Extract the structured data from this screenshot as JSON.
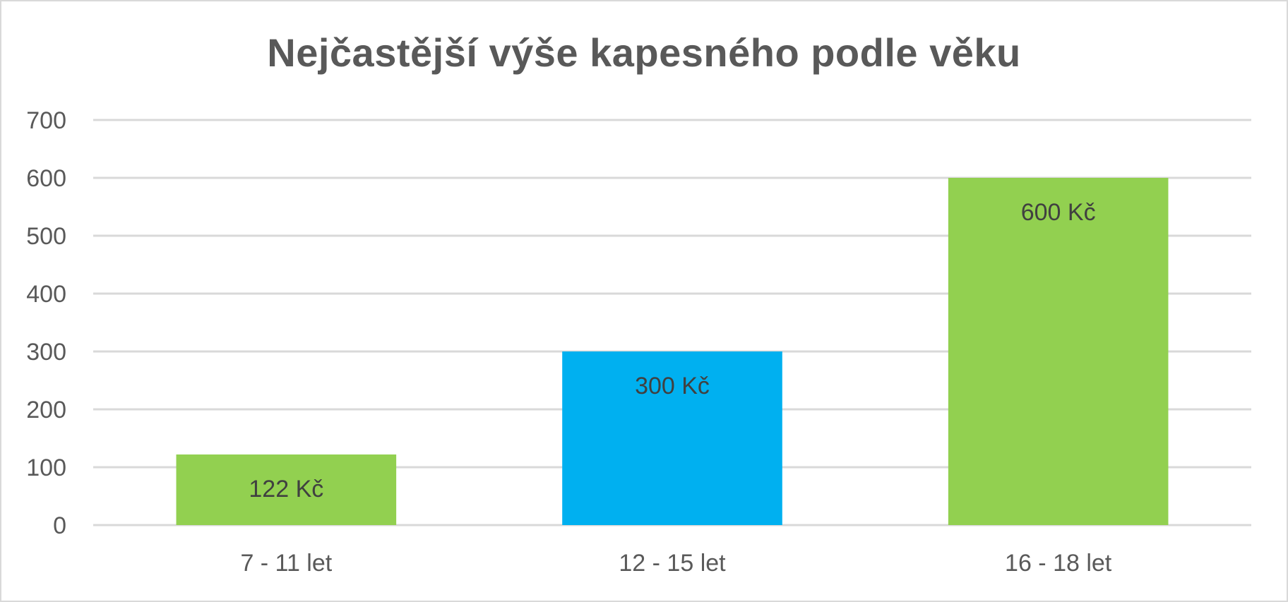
{
  "chart_data": {
    "type": "bar",
    "title": "Nejčastější výše kapesného podle věku",
    "xlabel": "",
    "ylabel": "",
    "categories": [
      "7 - 11 let",
      "12 - 15 let",
      "16 - 18 let"
    ],
    "values": [
      122,
      300,
      600
    ],
    "data_labels": [
      "122 Kč",
      "300 Kč",
      "600 Kč"
    ],
    "bar_colors": [
      "#92d050",
      "#00b0f0",
      "#92d050"
    ],
    "ylim": [
      0,
      700
    ],
    "yticks": [
      0,
      100,
      200,
      300,
      400,
      500,
      600,
      700
    ],
    "grid": true,
    "legend": "none"
  },
  "colors": {
    "grid": "#d9d9d9",
    "text": "#595959",
    "label_text": "#404040"
  }
}
